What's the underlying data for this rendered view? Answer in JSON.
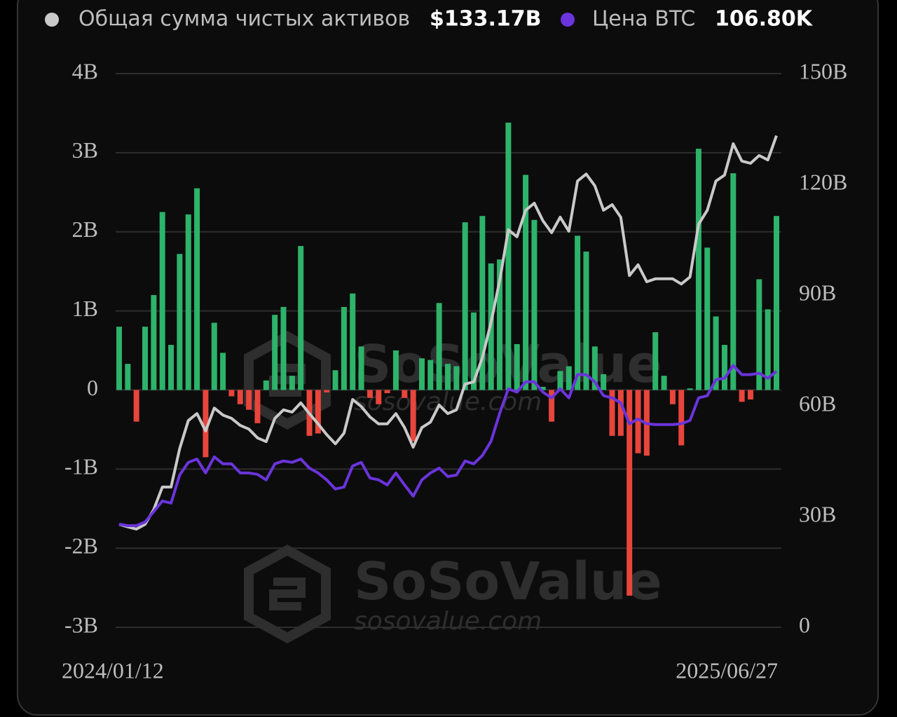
{
  "chart_data": {
    "type": "combo",
    "watermark": {
      "brand": "SoSoValue",
      "url": "sosovalue.com"
    },
    "categories": [
      "2024/01/12",
      null,
      null,
      null,
      null,
      null,
      null,
      null,
      null,
      null,
      null,
      null,
      null,
      null,
      null,
      null,
      null,
      null,
      null,
      null,
      null,
      null,
      null,
      null,
      null,
      null,
      null,
      null,
      null,
      null,
      null,
      null,
      null,
      null,
      null,
      null,
      null,
      null,
      null,
      null,
      null,
      null,
      null,
      null,
      null,
      null,
      null,
      null,
      null,
      null,
      null,
      null,
      null,
      null,
      null,
      null,
      null,
      null,
      null,
      null,
      null,
      null,
      null,
      null,
      null,
      null,
      null,
      null,
      null,
      null,
      null,
      null,
      null,
      null,
      null,
      null,
      "2025/06/27"
    ],
    "ylim": [
      -3,
      4
    ],
    "yticks": [
      {
        "value": 4,
        "label": "4B"
      },
      {
        "value": 3,
        "label": "3B"
      },
      {
        "value": 2,
        "label": "2B"
      },
      {
        "value": 1,
        "label": "1B"
      },
      0,
      {
        "value": -1,
        "label": "-1B"
      },
      {
        "value": -2,
        "label": "-2B"
      },
      {
        "value": -3,
        "label": "-3B"
      }
    ],
    "y2lim": [
      0,
      150
    ],
    "y2ticks": [
      {
        "value": 150,
        "label": "150B"
      },
      {
        "value": 120,
        "label": "120B"
      },
      {
        "value": 90,
        "label": "90B"
      },
      {
        "value": 60,
        "label": "60B"
      },
      {
        "value": 30,
        "label": "30B"
      },
      0
    ],
    "y3lim": [
      0,
      231
    ],
    "grid": true,
    "series": [
      {
        "type": "bar",
        "color": "#2db36a",
        "negative_color": "#e8453c",
        "values": [
          0.8,
          0.33,
          -0.4,
          0.8,
          1.2,
          2.25,
          0.57,
          1.72,
          2.22,
          2.55,
          -0.85,
          0.85,
          0.47,
          -0.08,
          -0.18,
          -0.25,
          -0.42,
          0.12,
          0.95,
          1.05,
          0.18,
          1.82,
          -0.58,
          -0.55,
          -0.03,
          0.25,
          1.05,
          1.22,
          0.55,
          -0.1,
          -0.18,
          -0.04,
          0.5,
          -0.1,
          -0.65,
          0.4,
          0.38,
          1.1,
          0.33,
          0.3,
          2.12,
          0.98,
          2.2,
          1.6,
          1.65,
          3.38,
          0.58,
          2.72,
          2.15,
          0.04,
          -0.4,
          0.24,
          0.3,
          1.95,
          1.75,
          0.55,
          0.2,
          -0.58,
          -0.58,
          -2.6,
          -0.8,
          -0.83,
          0.73,
          0.18,
          -0.18,
          -0.7,
          0.02,
          3.05,
          1.8,
          0.93,
          0.57,
          2.74,
          -0.15,
          -0.12,
          1.4,
          1.02,
          2.2
        ]
      },
      {
        "type": "line",
        "name": "Общая сумма чистых активов",
        "latest": "$133.17B",
        "color": "#c9c9c9",
        "axis": "y2",
        "values": [
          27.9,
          27.2,
          26.6,
          27.9,
          31.9,
          38,
          38,
          48.4,
          56,
          57.9,
          53.2,
          59.4,
          57.5,
          56.6,
          54.7,
          53.7,
          51.3,
          50.3,
          56.6,
          58.9,
          58.3,
          60.8,
          57.9,
          55.1,
          52.2,
          49.7,
          52.6,
          61.7,
          59.8,
          57,
          55.1,
          55.1,
          57.9,
          54.1,
          48.8,
          54.1,
          55.6,
          60.2,
          57.9,
          58.9,
          65.9,
          66.5,
          73.1,
          82.6,
          94,
          107.7,
          105.8,
          113,
          114.9,
          110.1,
          106.9,
          111.1,
          107.3,
          120.9,
          122.8,
          119.6,
          113,
          114.5,
          111.1,
          95.3,
          98.2,
          93.6,
          94.4,
          94.4,
          94.4,
          93,
          94.9,
          109.2,
          113,
          120.9,
          122.5,
          131,
          126.3,
          125.7,
          127.8,
          126.6,
          133.17
        ]
      },
      {
        "type": "line",
        "name": "Цена BTC",
        "latest": "106.80K",
        "color": "#6b34dc",
        "axis": "y3",
        "values": [
          43.0,
          42.4,
          42.4,
          43.9,
          48.3,
          52.7,
          51.8,
          63.5,
          68.8,
          70.2,
          64.4,
          71.1,
          68.2,
          68.2,
          64.4,
          64.4,
          63.8,
          61.5,
          68.2,
          69.4,
          68.8,
          70.2,
          66.4,
          64.4,
          61.5,
          57.7,
          58.5,
          67.3,
          68.8,
          62.3,
          61.5,
          59.4,
          64.4,
          59.4,
          54.7,
          61.5,
          64.4,
          66.4,
          62.9,
          63.5,
          69.4,
          68.2,
          71.7,
          77.6,
          89.3,
          99.5,
          98.1,
          102.4,
          102.4,
          98.1,
          95.7,
          99.5,
          95.7,
          105.4,
          105.4,
          102.4,
          96.6,
          95.7,
          93.7,
          84.9,
          86.9,
          84.9,
          84.6,
          84.6,
          84.6,
          84.9,
          86.3,
          95.7,
          96.6,
          103.3,
          103.9,
          109.2,
          105.4,
          105.4,
          106.0,
          103.9,
          106.8
        ]
      }
    ]
  }
}
